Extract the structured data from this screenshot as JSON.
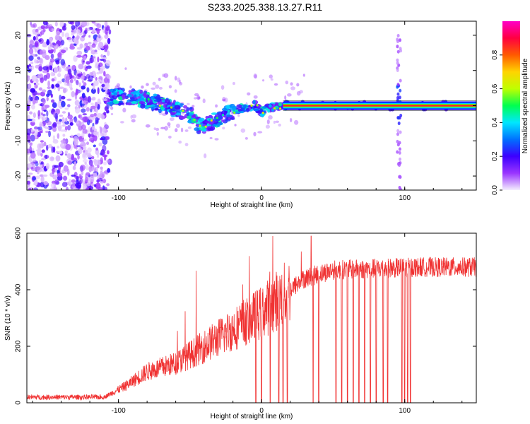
{
  "title": "S233.2025.338.13.27.R11",
  "chart_data": [
    {
      "type": "heatmap",
      "name": "spectrogram",
      "xlabel": "Height of straight line (km)",
      "ylabel": "Frequency (Hz)",
      "xlim": [
        -164,
        150
      ],
      "ylim": [
        -24,
        24
      ],
      "xticks": [
        -100,
        0,
        100
      ],
      "yticks": [
        -20,
        -10,
        0,
        10,
        20
      ],
      "colorbar": {
        "label": "Normalized spectral amplitude",
        "range": [
          0,
          1
        ],
        "ticks": [
          0.0,
          0.2,
          0.4,
          0.6,
          0.8
        ],
        "colors": [
          "#f4eefe",
          "#9a35ff",
          "#3c00ff",
          "#0070ff",
          "#00e7ff",
          "#00ff50",
          "#bfff00",
          "#ffd400",
          "#ff5a00",
          "#ff0040",
          "#ff00c8"
        ]
      },
      "line_track": [
        {
          "x": -106,
          "y": 2.5
        },
        {
          "x": -90,
          "y": 2.5
        },
        {
          "x": -80,
          "y": 1.5
        },
        {
          "x": -70,
          "y": 0.5
        },
        {
          "x": -60,
          "y": -1
        },
        {
          "x": -50,
          "y": -2.5
        },
        {
          "x": -43,
          "y": -6
        },
        {
          "x": -35,
          "y": -4.5
        },
        {
          "x": -25,
          "y": -2.5
        },
        {
          "x": -15,
          "y": -1
        },
        {
          "x": -5,
          "y": 0.3
        },
        {
          "x": 0,
          "y": -2
        },
        {
          "x": 5,
          "y": -0.5
        },
        {
          "x": 15,
          "y": 0
        },
        {
          "x": 150,
          "y": 0
        }
      ]
    },
    {
      "type": "line",
      "name": "snr",
      "xlabel": "Height of straight line (km)",
      "ylabel": "SNR (10 * v/v)",
      "xlim": [
        -164,
        150
      ],
      "ylim": [
        0,
        600
      ],
      "xticks": [
        -100,
        0,
        100
      ],
      "yticks": [
        0,
        200,
        400,
        600
      ],
      "color": "#f03232",
      "trend": [
        {
          "x": -164,
          "y": 20
        },
        {
          "x": -110,
          "y": 20
        },
        {
          "x": -95,
          "y": 60
        },
        {
          "x": -80,
          "y": 110
        },
        {
          "x": -60,
          "y": 140
        },
        {
          "x": -40,
          "y": 200
        },
        {
          "x": -20,
          "y": 260
        },
        {
          "x": 0,
          "y": 320
        },
        {
          "x": 15,
          "y": 380
        },
        {
          "x": 30,
          "y": 440
        },
        {
          "x": 50,
          "y": 470
        },
        {
          "x": 80,
          "y": 475
        },
        {
          "x": 110,
          "y": 480
        },
        {
          "x": 150,
          "y": 480
        }
      ],
      "dropouts_km": [
        -4,
        0,
        6,
        12,
        15,
        18,
        36,
        40,
        52,
        56,
        60,
        64,
        68,
        72,
        76,
        80,
        85,
        88,
        98,
        100,
        102,
        104
      ]
    }
  ]
}
